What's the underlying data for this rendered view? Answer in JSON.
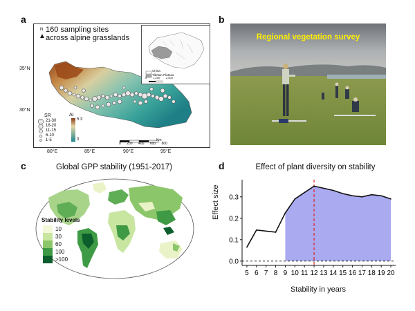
{
  "panel_a": {
    "letter": "a",
    "caption_line1": "160 sampling sites",
    "caption_line2": "across alpine grasslands",
    "north": "N",
    "lat_labels": [
      "35°N",
      "30°N"
    ],
    "lon_labels": [
      "80°E",
      "85°E",
      "90°E",
      "95°E"
    ],
    "sr_title": "SR",
    "sr_items": [
      "21-30",
      "16-20",
      "11-15",
      "6-10",
      "1-5"
    ],
    "ai_title": "AI",
    "ai_max": "5.3",
    "ai_min": "0",
    "scale_unit": "Km",
    "scale_ticks": [
      "0",
      "200",
      "400",
      "600",
      "800"
    ],
    "inset": {
      "legend_china": "China",
      "legend_tp": "Tibetan Plateau",
      "scale_ticks": [
        "0",
        "1,250",
        "2,500"
      ],
      "scale_unit": "Km"
    },
    "colors": {
      "arid": "#a0522d",
      "humid": "#2f8f8f"
    }
  },
  "panel_b": {
    "letter": "b",
    "title": "Regional vegetation survey",
    "title_color": "#ffee00"
  },
  "panel_c": {
    "letter": "c",
    "title": "Global GPP stability (1951-2017)",
    "legend_title": "Stability levels",
    "levels": [
      {
        "label": "10",
        "color": "#f4f8d8"
      },
      {
        "label": "30",
        "color": "#c8e6a0"
      },
      {
        "label": "60",
        "color": "#8cc66a"
      },
      {
        "label": "100",
        "color": "#3f9a45"
      },
      {
        "label": ">100",
        "color": "#0c5e2c"
      }
    ]
  },
  "panel_d": {
    "letter": "d",
    "title": "Effect of plant diversity on stability",
    "ylabel": "Effect size",
    "xlabel": "Stability in years"
  },
  "chart_data": {
    "type": "line",
    "title": "Effect of plant diversity on stability",
    "xlabel": "Stability in years",
    "ylabel": "Effect size",
    "x": [
      5,
      6,
      7,
      8,
      9,
      10,
      11,
      12,
      13,
      14,
      15,
      16,
      17,
      18,
      19,
      20
    ],
    "values": [
      0.065,
      0.145,
      0.14,
      0.135,
      0.225,
      0.29,
      0.32,
      0.35,
      0.34,
      0.33,
      0.315,
      0.305,
      0.3,
      0.31,
      0.305,
      0.29
    ],
    "xlim": [
      4.5,
      20.5
    ],
    "ylim": [
      -0.02,
      0.38
    ],
    "yticks": [
      "0.0",
      "0.1",
      "0.2",
      "0.3"
    ],
    "ytick_values": [
      0,
      0.1,
      0.2,
      0.3
    ],
    "xticks": [
      "5",
      "6",
      "7",
      "8",
      "9",
      "10",
      "11",
      "12",
      "13",
      "14",
      "15",
      "16",
      "17",
      "18",
      "19",
      "20"
    ],
    "shade_from": 9,
    "shade_to": 20,
    "shade_color": "#aaaaf0",
    "vline_x": 12,
    "vline_color": "#e02020",
    "hline_y": 0
  }
}
